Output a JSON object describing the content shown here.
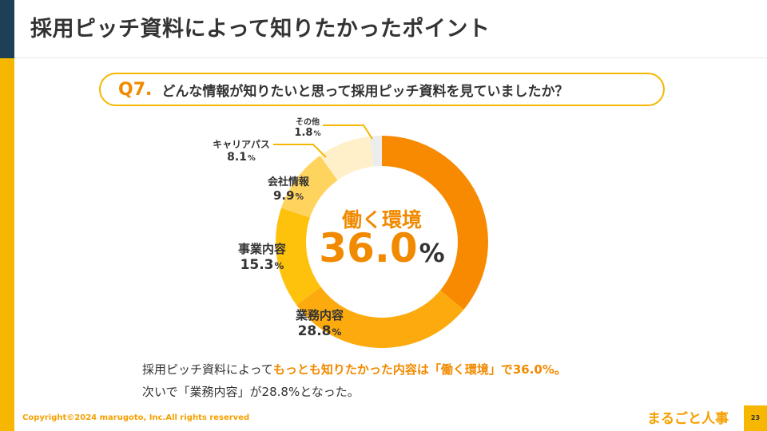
{
  "header": {
    "title": "採用ピッチ資料によって知りたかったポイント"
  },
  "question": {
    "number": "Q7.",
    "text": "どんな情報が知りたいと思って採用ピッチ資料を見ていましたか？"
  },
  "chart_data": {
    "type": "pie",
    "donut": true,
    "categories": [
      "働く環境",
      "業務内容",
      "事業内容",
      "会社情報",
      "キャリアパス",
      "その他"
    ],
    "values": [
      36.0,
      28.8,
      15.3,
      9.9,
      8.1,
      1.8
    ],
    "value_labels": [
      "36.0",
      "28.8",
      "15.3",
      "9.9",
      "8.1",
      "1.8"
    ],
    "unit": "%",
    "colors": [
      "#f78a00",
      "#fcaa0d",
      "#ffc20c",
      "#ffd45e",
      "#fff0c9",
      "#ececec"
    ],
    "center": {
      "label": "働く環境",
      "value": "36.0",
      "unit": "%"
    }
  },
  "summary": {
    "line1_prefix": "採用ピッチ資料によって",
    "line1_highlight": "もっとも知りたかった内容は「働く環境」で36.0%。",
    "line2": "次いで「業務内容」が28.8%となった。"
  },
  "footer": {
    "copyright": "Copyright©2024 marugoto, Inc.All rights reserved",
    "brand": "まるごと人事",
    "page_number": "23"
  }
}
